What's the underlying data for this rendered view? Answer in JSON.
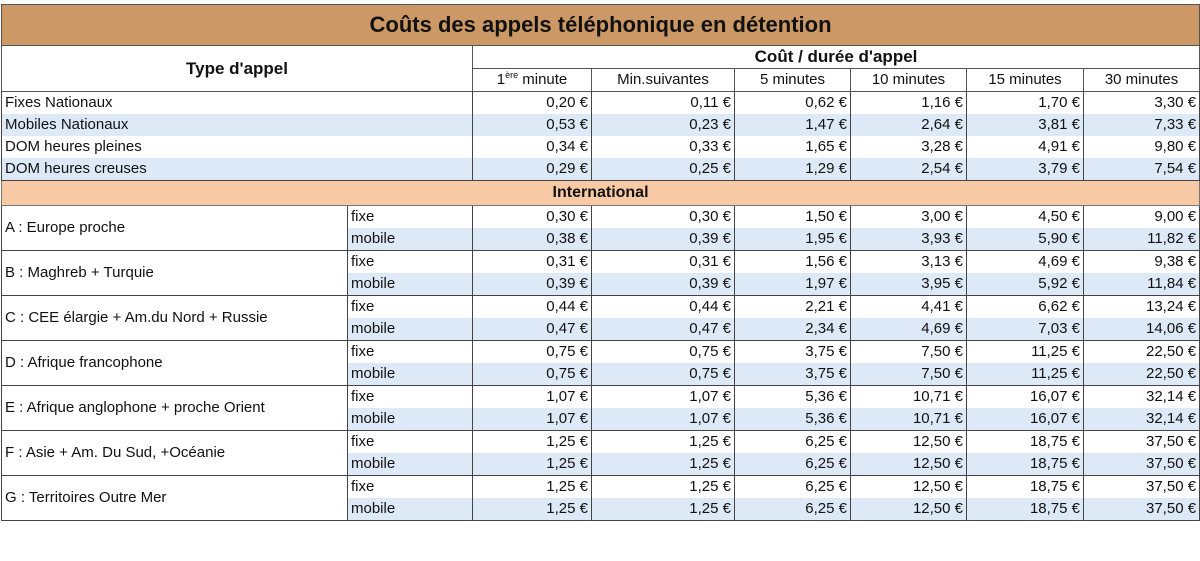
{
  "title": "Coûts des appels téléphonique en détention",
  "header": {
    "type_label": "Type d'appel",
    "cost_label": "Coût / durée d'appel",
    "first_minute_main": "1",
    "first_minute_sup": "ère",
    "first_minute_rest": " minute",
    "columns": [
      "Min.suivantes",
      "5 minutes",
      "10 minutes",
      "15 minutes",
      "30 minutes"
    ]
  },
  "national": [
    {
      "label": "Fixes Nationaux",
      "values": [
        "0,20 €",
        "0,11 €",
        "0,62 €",
        "1,16 €",
        "1,70 €",
        "3,30 €"
      ]
    },
    {
      "label": "Mobiles Nationaux",
      "values": [
        "0,53 €",
        "0,23 €",
        "1,47 €",
        "2,64 €",
        "3,81 €",
        "7,33 €"
      ]
    },
    {
      "label": "DOM heures pleines",
      "values": [
        "0,34 €",
        "0,33 €",
        "1,65 €",
        "3,28 €",
        "4,91 €",
        "9,80 €"
      ]
    },
    {
      "label": "DOM heures creuses",
      "values": [
        "0,29 €",
        "0,25 €",
        "1,29 €",
        "2,54 €",
        "3,79 €",
        "7,54 €"
      ]
    }
  ],
  "international_label": "International",
  "zones": [
    {
      "label": "A : Europe proche",
      "fixe": {
        "label": "fixe",
        "values": [
          "0,30 €",
          "0,30 €",
          "1,50 €",
          "3,00 €",
          "4,50 €",
          "9,00 €"
        ]
      },
      "mobile": {
        "label": "mobile",
        "values": [
          "0,38 €",
          "0,39 €",
          "1,95 €",
          "3,93 €",
          "5,90 €",
          "11,82 €"
        ]
      }
    },
    {
      "label": "B : Maghreb + Turquie",
      "fixe": {
        "label": "fixe",
        "values": [
          "0,31 €",
          "0,31 €",
          "1,56 €",
          "3,13 €",
          "4,69 €",
          "9,38 €"
        ]
      },
      "mobile": {
        "label": "mobile",
        "values": [
          "0,39 €",
          "0,39 €",
          "1,97 €",
          "3,95 €",
          "5,92 €",
          "11,84 €"
        ]
      }
    },
    {
      "label": "C : CEE élargie + Am.du Nord + Russie",
      "fixe": {
        "label": "fixe",
        "values": [
          "0,44 €",
          "0,44 €",
          "2,21 €",
          "4,41 €",
          "6,62 €",
          "13,24 €"
        ]
      },
      "mobile": {
        "label": "mobile",
        "values": [
          "0,47 €",
          "0,47 €",
          "2,34 €",
          "4,69 €",
          "7,03 €",
          "14,06 €"
        ]
      }
    },
    {
      "label": "D : Afrique francophone",
      "fixe": {
        "label": "fixe",
        "values": [
          "0,75 €",
          "0,75 €",
          "3,75 €",
          "7,50 €",
          "11,25 €",
          "22,50 €"
        ]
      },
      "mobile": {
        "label": "mobile",
        "values": [
          "0,75 €",
          "0,75 €",
          "3,75 €",
          "7,50 €",
          "11,25 €",
          "22,50 €"
        ]
      }
    },
    {
      "label": "E : Afrique anglophone + proche Orient",
      "fixe": {
        "label": "fixe",
        "values": [
          "1,07 €",
          "1,07 €",
          "5,36 €",
          "10,71 €",
          "16,07 €",
          "32,14 €"
        ]
      },
      "mobile": {
        "label": "mobile",
        "values": [
          "1,07 €",
          "1,07 €",
          "5,36 €",
          "10,71 €",
          "16,07 €",
          "32,14 €"
        ]
      }
    },
    {
      "label": "F : Asie + Am. Du Sud, +Océanie",
      "fixe": {
        "label": "fixe",
        "values": [
          "1,25 €",
          "1,25 €",
          "6,25 €",
          "12,50 €",
          "18,75 €",
          "37,50 €"
        ]
      },
      "mobile": {
        "label": "mobile",
        "values": [
          "1,25 €",
          "1,25 €",
          "6,25 €",
          "12,50 €",
          "18,75 €",
          "37,50 €"
        ]
      }
    },
    {
      "label": "G : Territoires Outre Mer",
      "fixe": {
        "label": "fixe",
        "values": [
          "1,25 €",
          "1,25 €",
          "6,25 €",
          "12,50 €",
          "18,75 €",
          "37,50 €"
        ]
      },
      "mobile": {
        "label": "mobile",
        "values": [
          "1,25 €",
          "1,25 €",
          "6,25 €",
          "12,50 €",
          "18,75 €",
          "37,50 €"
        ]
      }
    }
  ]
}
